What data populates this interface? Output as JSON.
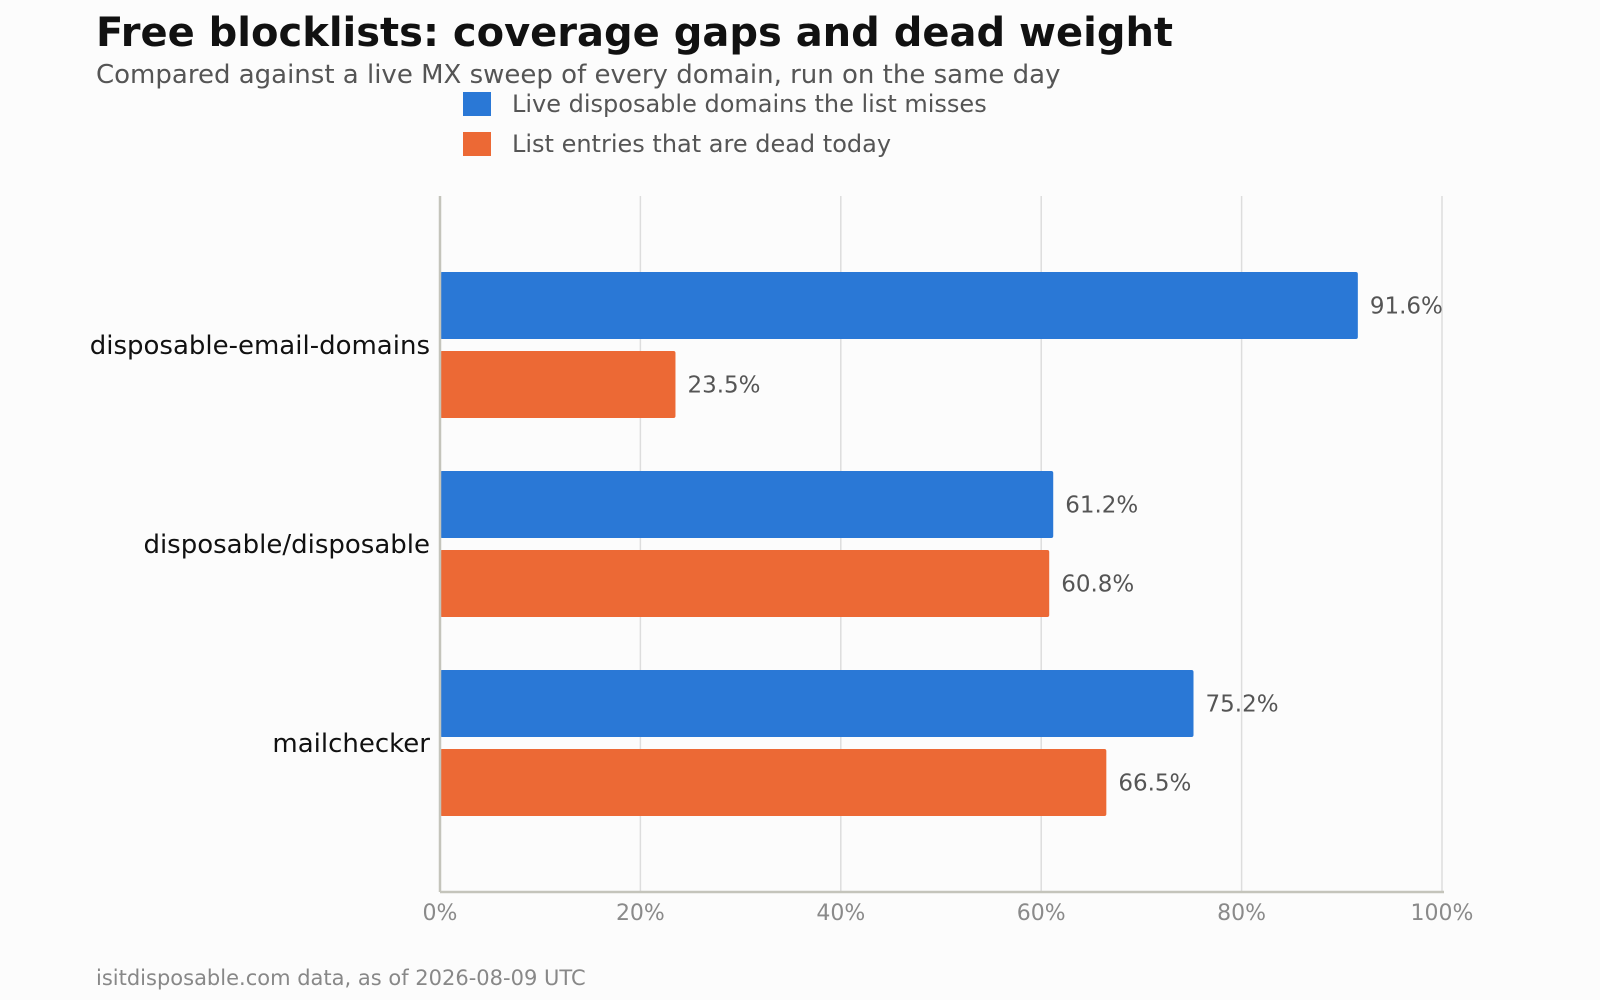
{
  "header": {
    "title": "Free blocklists: coverage gaps and dead weight",
    "subtitle": "Compared against a live MX sweep of every domain, run on the same day"
  },
  "footer": {
    "source": "isitdisposable.com data, as of 2026-08-09 UTC"
  },
  "colors": {
    "misses": "#2a78d6",
    "dead": "#ec6935",
    "grid": "#dddddd",
    "axis": "#c4c4bb",
    "tick_text": "#8a8a8a",
    "category_text": "#111111",
    "value_text": "#555555",
    "legend_text": "#555555"
  },
  "chart_data": {
    "type": "bar",
    "orientation": "horizontal",
    "title": "Free blocklists: coverage gaps and dead weight",
    "subtitle": "Compared against a live MX sweep of every domain, run on the same day",
    "categories": [
      "disposable-email-domains",
      "disposable/disposable",
      "mailchecker"
    ],
    "series": [
      {
        "name": "Live disposable domains the list misses",
        "values": [
          91.6,
          61.2,
          75.2
        ],
        "labels": [
          "91.6%",
          "61.2%",
          "75.2%"
        ]
      },
      {
        "name": "List entries that are dead today",
        "values": [
          23.5,
          60.8,
          66.5
        ],
        "labels": [
          "23.5%",
          "60.8%",
          "66.5%"
        ]
      }
    ],
    "xlim": [
      0,
      100
    ],
    "xticks": [
      0,
      20,
      40,
      60,
      80,
      100
    ],
    "xtick_labels": [
      "0%",
      "20%",
      "40%",
      "60%",
      "80%",
      "100%"
    ],
    "xlabel": "",
    "ylabel": "",
    "grid": "vertical",
    "legend_position": "top-center"
  }
}
